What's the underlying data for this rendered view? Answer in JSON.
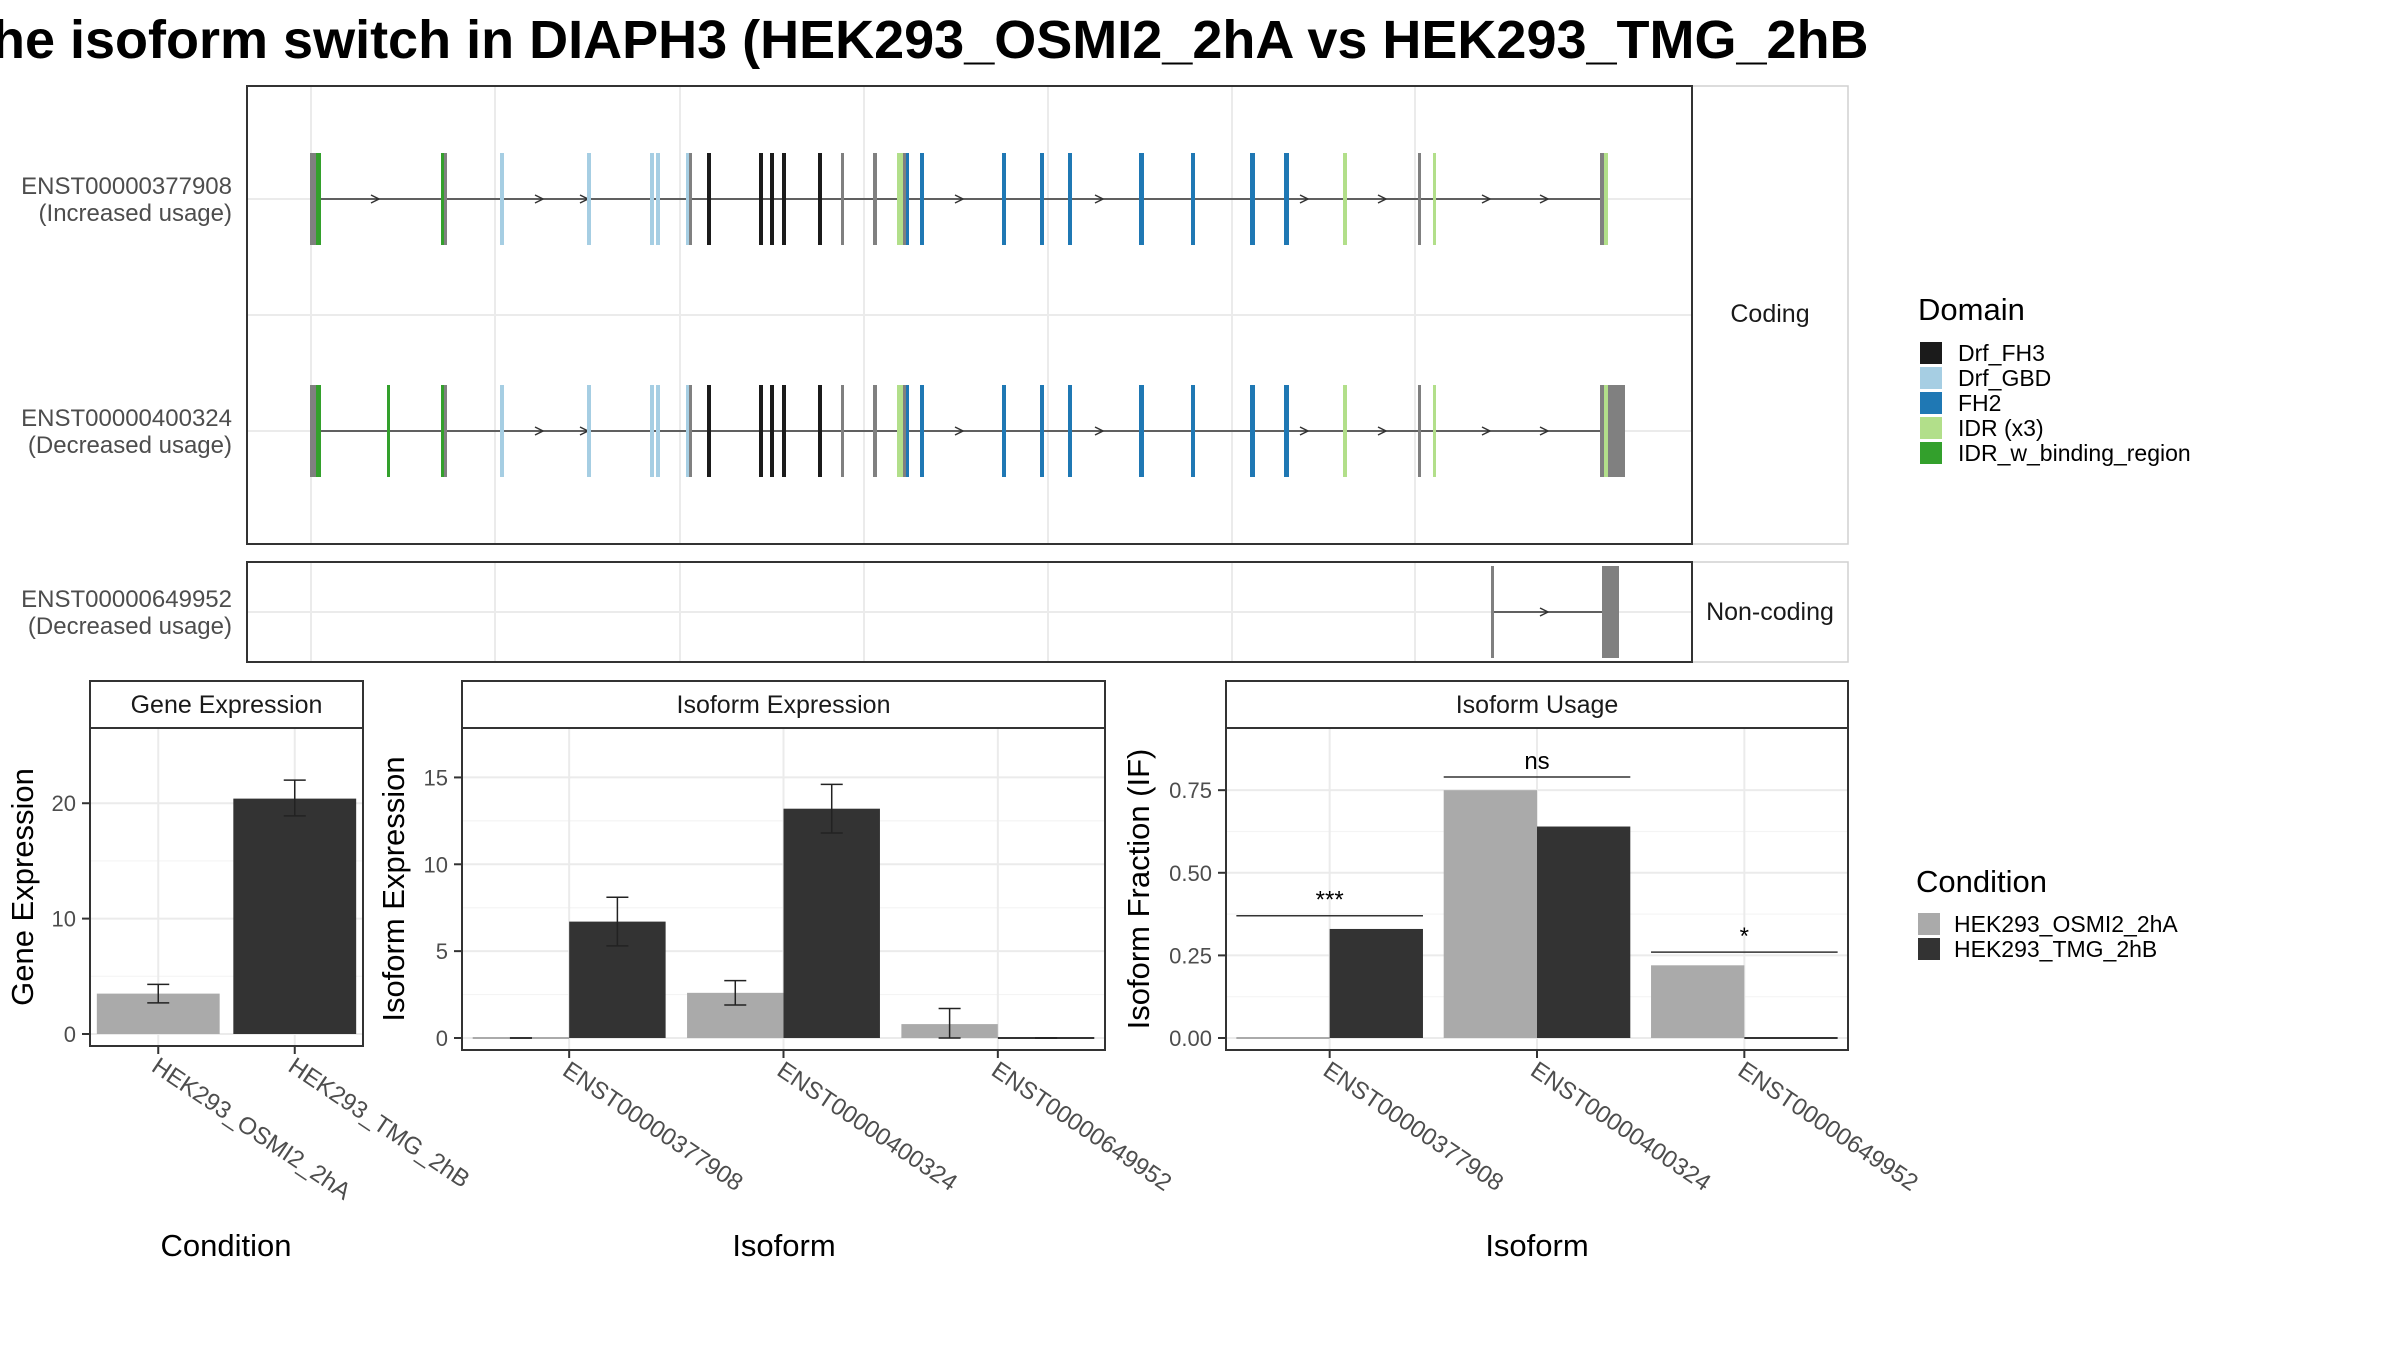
{
  "title": "he isoform switch in DIAPH3 (HEK293_OSMI2_2hA vs HEK293_TMG_2hB",
  "colors": {
    "Drf_FH3": "#1b1b1b",
    "Drf_GBD": "#a6cee3",
    "FH2": "#1f78b4",
    "IDR (x3)": "#b2df8a",
    "IDR_w_binding_region": "#33a02c",
    "no_domain": "#808080",
    "HEK293_OSMI2_2hA": "#aaaaaa",
    "HEK293_TMG_2hB": "#333333"
  },
  "structure": {
    "coding_strip": "Coding",
    "noncoding_strip": "Non-coding",
    "isoforms": [
      {
        "id": "ENST00000377908",
        "usage": "(Increased usage)",
        "group": "coding"
      },
      {
        "id": "ENST00000400324",
        "usage": "(Decreased usage)",
        "group": "coding"
      },
      {
        "id": "ENST00000649952",
        "usage": "(Decreased usage)",
        "group": "noncoding"
      }
    ]
  },
  "legend_domain": {
    "title": "Domain",
    "items": [
      "Drf_FH3",
      "Drf_GBD",
      "FH2",
      "IDR (x3)",
      "IDR_w_binding_region"
    ]
  },
  "legend_condition": {
    "title": "Condition",
    "items": [
      "HEK293_OSMI2_2hA",
      "HEK293_TMG_2hB"
    ]
  },
  "chart_data": [
    {
      "type": "bar",
      "title": "Gene Expression",
      "xlabel": "Condition",
      "ylabel": "Gene Expression",
      "ylim": [
        0,
        26
      ],
      "yticks": [
        0,
        10,
        20
      ],
      "categories": [
        "HEK293_OSMI2_2hA",
        "HEK293_TMG_2hB"
      ],
      "values": [
        3.5,
        20.4
      ],
      "err_low": [
        2.7,
        18.9
      ],
      "err_high": [
        4.3,
        22.0
      ],
      "series_names": [
        "HEK293_OSMI2_2hA",
        "HEK293_TMG_2hB"
      ]
    },
    {
      "type": "bar",
      "title": "Isoform Expression",
      "xlabel": "Isoform",
      "ylabel": "Isoform Expression",
      "ylim": [
        0,
        17.5
      ],
      "yticks": [
        0,
        5,
        10,
        15
      ],
      "categories": [
        "ENST00000377908",
        "ENST00000400324",
        "ENST00000649952"
      ],
      "series": [
        {
          "name": "HEK293_OSMI2_2hA",
          "values": [
            0.0,
            2.6,
            0.8
          ],
          "err_low": [
            0.0,
            1.9,
            0.0
          ],
          "err_high": [
            0.0,
            3.3,
            1.7
          ]
        },
        {
          "name": "HEK293_TMG_2hB",
          "values": [
            6.7,
            13.2,
            0.0
          ],
          "err_low": [
            5.3,
            11.8,
            0.0
          ],
          "err_high": [
            8.1,
            14.6,
            0.0
          ]
        }
      ]
    },
    {
      "type": "bar",
      "title": "Isoform Usage",
      "xlabel": "Isoform",
      "ylabel": "Isoform Fraction (IF)",
      "ylim": [
        0,
        0.92
      ],
      "yticks": [
        "0.00",
        "0.25",
        "0.50",
        "0.75"
      ],
      "categories": [
        "ENST00000377908",
        "ENST00000400324",
        "ENST00000649952"
      ],
      "series": [
        {
          "name": "HEK293_OSMI2_2hA",
          "values": [
            0.0,
            0.75,
            0.22
          ]
        },
        {
          "name": "HEK293_TMG_2hB",
          "values": [
            0.33,
            0.64,
            0.0
          ]
        }
      ],
      "significance": [
        "***",
        "ns",
        "*"
      ]
    }
  ]
}
